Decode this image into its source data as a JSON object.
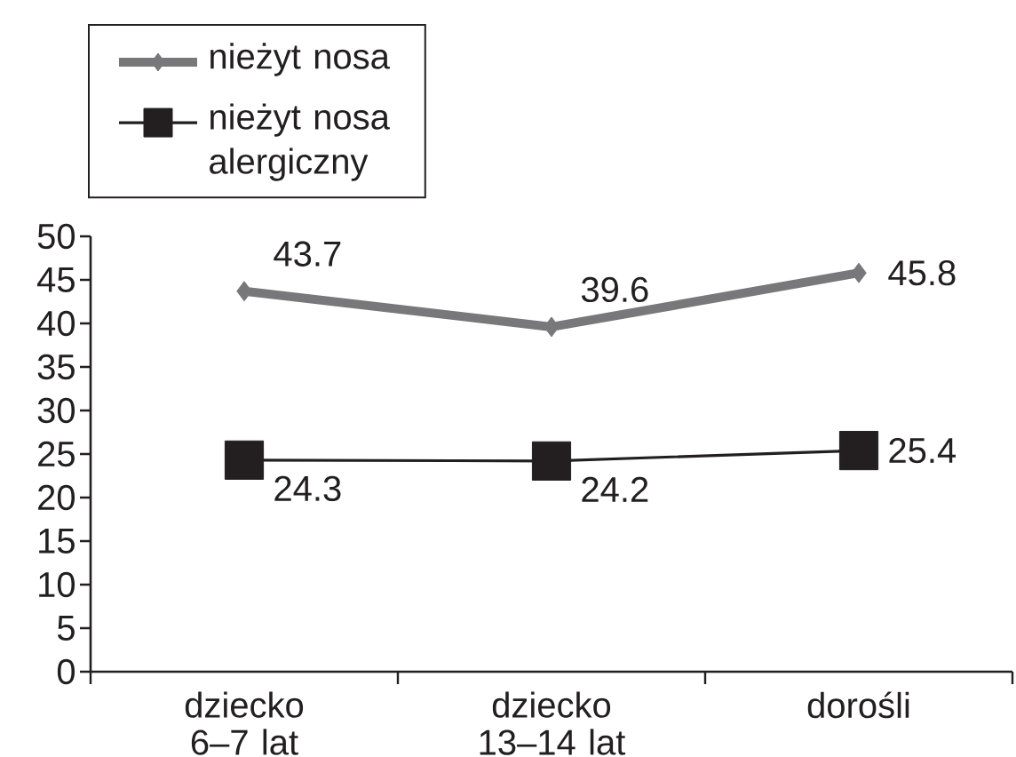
{
  "chart_data": {
    "type": "line",
    "categories": [
      "dziecko 6–7 lat",
      "dziecko 13–14 lat",
      "dorośli"
    ],
    "series": [
      {
        "name": "nieżyt nosa",
        "color": "#78787b",
        "marker": "diamond",
        "values": [
          43.7,
          39.6,
          45.8
        ]
      },
      {
        "name": "nieżyt nosa alergiczny",
        "color": "#231f20",
        "marker": "square",
        "values": [
          24.3,
          24.2,
          25.4
        ]
      }
    ],
    "ylim": [
      0,
      50
    ],
    "yticks": [
      0,
      5,
      10,
      15,
      20,
      25,
      30,
      35,
      40,
      45,
      50
    ],
    "legend": "top left",
    "data_labels": true
  }
}
